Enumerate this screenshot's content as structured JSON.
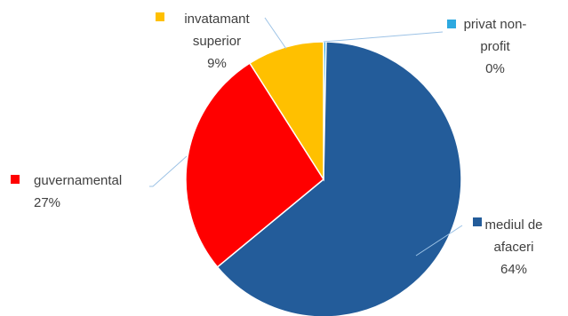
{
  "chart_data": {
    "type": "pie",
    "slices": [
      {
        "label_lines": [
          "privat non-",
          "profit"
        ],
        "value": 0.3,
        "pct_label": "0%",
        "color": "#2DA9E0"
      },
      {
        "label_lines": [
          "mediul de",
          "afaceri"
        ],
        "value": 63.7,
        "pct_label": "64%",
        "color": "#235C9A"
      },
      {
        "label_lines": [
          "guvernamental"
        ],
        "value": 27,
        "pct_label": "27%",
        "color": "#FF0000"
      },
      {
        "label_lines": [
          "invatamant",
          "superior"
        ],
        "value": 9,
        "pct_label": "9%",
        "color": "#FFC000"
      }
    ],
    "title": "",
    "legend": "none"
  }
}
